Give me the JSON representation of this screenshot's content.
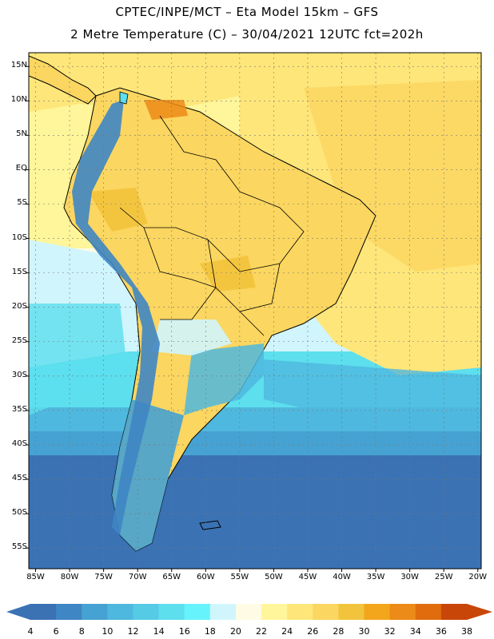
{
  "title": {
    "line1": "CPTEC/INPE/MCT –  Eta Model 15km – GFS",
    "line2": "2 Metre Temperature (C) – 30/04/2021 12UTC fct=202h"
  },
  "map": {
    "lat_range": [
      -58,
      17
    ],
    "lon_range": [
      -86,
      -19.5
    ],
    "lat_ticks": [
      {
        "value": 15,
        "label": "15N"
      },
      {
        "value": 10,
        "label": "10N"
      },
      {
        "value": 5,
        "label": "5N"
      },
      {
        "value": 0,
        "label": "EQ"
      },
      {
        "value": -5,
        "label": "5S"
      },
      {
        "value": -10,
        "label": "10S"
      },
      {
        "value": -15,
        "label": "15S"
      },
      {
        "value": -20,
        "label": "20S"
      },
      {
        "value": -25,
        "label": "25S"
      },
      {
        "value": -30,
        "label": "30S"
      },
      {
        "value": -35,
        "label": "35S"
      },
      {
        "value": -40,
        "label": "40S"
      },
      {
        "value": -45,
        "label": "45S"
      },
      {
        "value": -50,
        "label": "50S"
      },
      {
        "value": -55,
        "label": "55S"
      }
    ],
    "lon_ticks": [
      {
        "value": -85,
        "label": "85W"
      },
      {
        "value": -80,
        "label": "80W"
      },
      {
        "value": -75,
        "label": "75W"
      },
      {
        "value": -70,
        "label": "70W"
      },
      {
        "value": -65,
        "label": "65W"
      },
      {
        "value": -60,
        "label": "60W"
      },
      {
        "value": -55,
        "label": "55W"
      },
      {
        "value": -50,
        "label": "50W"
      },
      {
        "value": -45,
        "label": "45W"
      },
      {
        "value": -40,
        "label": "40W"
      },
      {
        "value": -35,
        "label": "35W"
      },
      {
        "value": -30,
        "label": "30W"
      },
      {
        "value": -25,
        "label": "25W"
      },
      {
        "value": -20,
        "label": "20W"
      }
    ]
  },
  "colorbar": {
    "labels": [
      "4",
      "6",
      "8",
      "10",
      "12",
      "14",
      "16",
      "18",
      "20",
      "22",
      "24",
      "26",
      "28",
      "30",
      "32",
      "34",
      "36",
      "38"
    ],
    "colors": [
      "#3a72b4",
      "#3f86c4",
      "#46a2d2",
      "#4fb8de",
      "#56cbe6",
      "#5ddfee",
      "#66f3fc",
      "#d0f5fd",
      "#fffbe5",
      "#fff59a",
      "#fee67a",
      "#fbd660",
      "#f2c33c",
      "#f3a61c",
      "#ec8b17",
      "#e06c0d",
      "#c84608"
    ]
  },
  "palette": {
    "ocean_cold": "#3a72b4",
    "ocean_mid": "#4fb8de",
    "ocean_cool": "#5ddfee",
    "ocean_mild": "#d0f5fd",
    "ocean_warm": "#fffbe5",
    "ocean_hot": "#fee67a",
    "land_hot": "#fbd660",
    "land_very_hot": "#ec8b17",
    "andes": "#3f86c4",
    "coast_line": "#000000"
  }
}
